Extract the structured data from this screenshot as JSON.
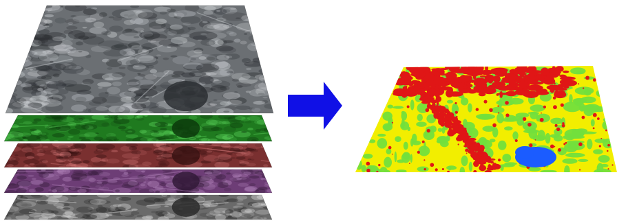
{
  "figure": {
    "input_stack": {
      "layers": [
        {
          "name": "grayscale-top-layer",
          "base": "#6b6f73",
          "dark": "#2c2f33",
          "light": "#c9ccd0"
        },
        {
          "name": "green-band-layer",
          "base": "#1f7a1f",
          "dark": "#0c3b0c",
          "light": "#59d059"
        },
        {
          "name": "red-band-layer",
          "base": "#7a3030",
          "dark": "#3a1313",
          "light": "#c97070"
        },
        {
          "name": "purple-band-layer",
          "base": "#6d3d76",
          "dark": "#331a38",
          "light": "#b184bb"
        },
        {
          "name": "grayscale-bottom-layer",
          "base": "#6a6a6a",
          "dark": "#2a2a2a",
          "light": "#d6d6d6"
        }
      ]
    },
    "arrow": {
      "icon": "right-arrow-icon",
      "color": "#1010e6"
    },
    "output_map": {
      "classes": [
        {
          "name": "red-class",
          "color": "#e01616"
        },
        {
          "name": "yellow-class",
          "color": "#f2ee00"
        },
        {
          "name": "green-class",
          "color": "#72df3c"
        },
        {
          "name": "water-class",
          "color": "#1b5cff"
        }
      ]
    }
  }
}
